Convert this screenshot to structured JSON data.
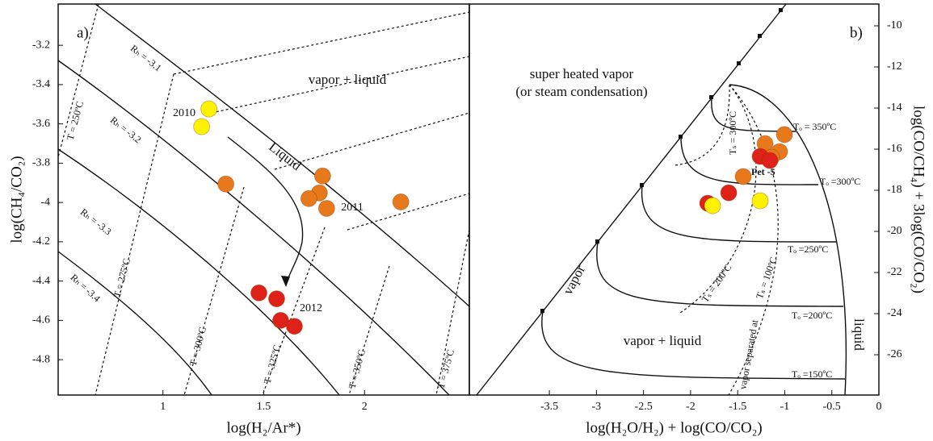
{
  "chart_data": [
    {
      "type": "scatter",
      "panel_label": "a)",
      "xlabel": "log(H₂/Ar*)",
      "ylabel": "log(CH₄/CO₂)",
      "xlim": [
        0.48,
        2.52
      ],
      "ylim": [
        -4.98,
        -2.99
      ],
      "xticks": [
        1,
        1.5,
        2
      ],
      "yticks": [
        -3.2,
        -3.4,
        -3.6,
        -3.8,
        -4,
        -4.2,
        -4.4,
        -4.6,
        -4.8
      ],
      "series": [
        {
          "color": "#fff200",
          "x": [
            1.228,
            1.192
          ],
          "y": [
            -3.524,
            -3.614
          ]
        },
        {
          "color": "#e8781c",
          "x": [
            1.312,
            1.792,
            1.776,
            1.724,
            1.812,
            2.18
          ],
          "y": [
            -3.906,
            -3.865,
            -3.951,
            -3.98,
            -4.03,
            -3.997
          ]
        },
        {
          "color": "#de2219",
          "x": [
            1.476,
            1.564,
            1.584,
            1.652
          ],
          "y": [
            -4.46,
            -4.49,
            -4.6,
            -4.63
          ]
        }
      ],
      "annotations": [
        "vapor + liquid",
        "Liquid",
        "2010",
        "2011",
        "2012",
        "Rₕ = -3.1",
        "Rₕ = -3.2",
        "Rₕ = -3.3",
        "Rₕ = -3.4",
        "T = 250ºC",
        "T = 275ºC",
        "T = 300ºC",
        "T = 325ºC",
        "T = 350ºC",
        "T = 375ºC"
      ]
    },
    {
      "type": "scatter",
      "panel_label": "b)",
      "xlabel": "log(H₂O/H₂) + log(CO/CO₂)",
      "ylabel": "log(CO/CH₄) + 3log(CO/CO₂)",
      "xlim": [
        -4.35,
        0
      ],
      "ylim": [
        -27.96,
        -8.94
      ],
      "xticks": [
        -3.5,
        -3,
        -2.5,
        -2,
        -1.5,
        -1,
        -0.5,
        0
      ],
      "yticks": [
        -10,
        -12,
        -14,
        -16,
        -18,
        -20,
        -22,
        -24,
        -26
      ],
      "series": [
        {
          "color": "#e8781c",
          "x": [
            -1.003,
            -1.209,
            -1.055,
            -1.14,
            -1.441
          ],
          "y": [
            -15.29,
            -15.73,
            -16.12,
            -16.39,
            -17.33
          ]
        },
        {
          "color": "#de2219",
          "x": [
            -1.261,
            -1.158,
            -1.595,
            -1.818
          ],
          "y": [
            -16.35,
            -16.55,
            -18.12,
            -18.63
          ]
        },
        {
          "color": "#fff200",
          "x": [
            -1.767,
            -1.261
          ],
          "y": [
            -18.75,
            -18.51
          ]
        }
      ],
      "annotations": [
        "super heated vapor",
        "(or steam condensation)",
        "Tₒ = 350ºC",
        "Tₒ =300ºC",
        "Tₒ =250ºC",
        "Tₒ =200ºC",
        "Tₒ =150ºC",
        "Pet -5",
        "Tₛ = 300ºC",
        "Tₛ = 200ºC",
        "Tₛ = 100ºC",
        "vapor separated at",
        "vapor",
        "liquid",
        "vapor + liquid"
      ]
    }
  ]
}
